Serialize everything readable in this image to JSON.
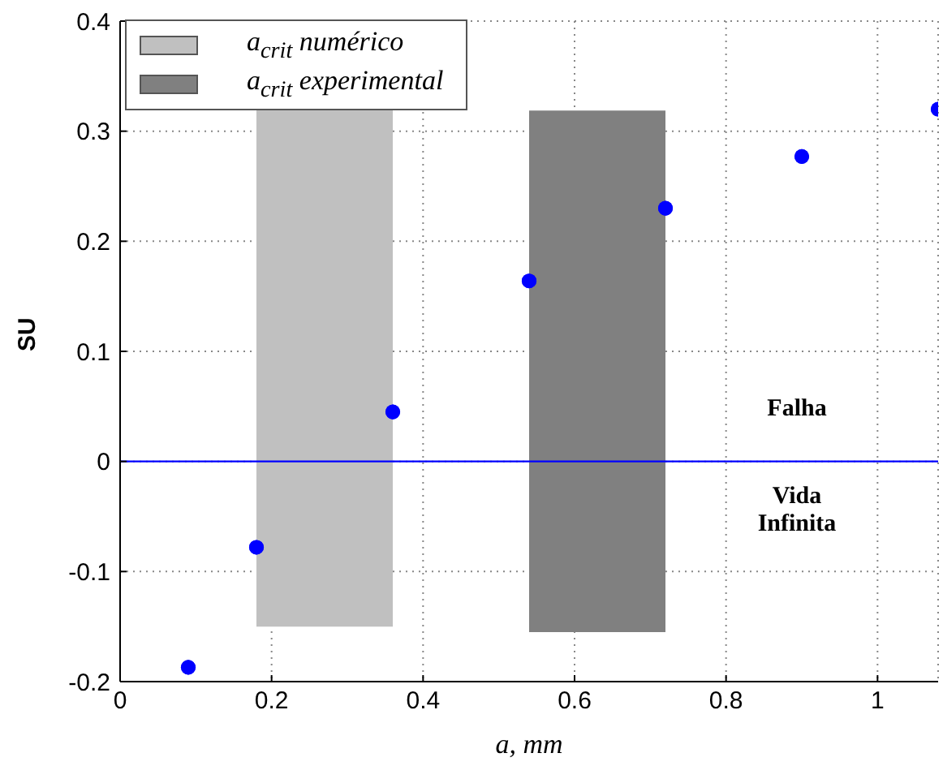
{
  "chart_data": {
    "type": "scatter",
    "xlabel": "a, mm",
    "ylabel": "SU",
    "xlim": [
      0,
      1.08
    ],
    "xticks": [
      0,
      0.2,
      0.4,
      0.6,
      0.8,
      1
    ],
    "ylim": [
      -0.2,
      0.4
    ],
    "yticks": [
      -0.2,
      -0.1,
      0,
      0.1,
      0.2,
      0.3,
      0.4
    ],
    "grid": true,
    "legend": "top left",
    "marker": "circle",
    "series": [
      {
        "type": "bar",
        "name": "a$_{crit}$ numérico",
        "color": "#c0c0c0",
        "x": [
          0.27
        ],
        "base": [
          -0.15
        ],
        "values": [
          0.47
        ],
        "xerrors": [
          0.09
        ]
      },
      {
        "type": "bar",
        "name": "a$_{crit}$ experimental",
        "color": "#808080",
        "x": [
          0.63
        ],
        "base": [
          -0.155
        ],
        "values": [
          0.473
        ],
        "xerrors": [
          0.09
        ]
      },
      {
        "color": "#0000ff",
        "x": [
          0.09,
          0.18,
          0.36,
          0.54,
          0.72,
          0.9,
          1.08
        ],
        "values": [
          -0.187,
          -0.078,
          0.045,
          0.164,
          0.23,
          0.277,
          0.32
        ]
      }
    ],
    "ref_lines": [
      {
        "axis": "y",
        "value": 0,
        "color": "#0000ff",
        "line_style": "solid"
      }
    ],
    "annotations": [
      "Falha",
      "Vida Infinita"
    ]
  }
}
